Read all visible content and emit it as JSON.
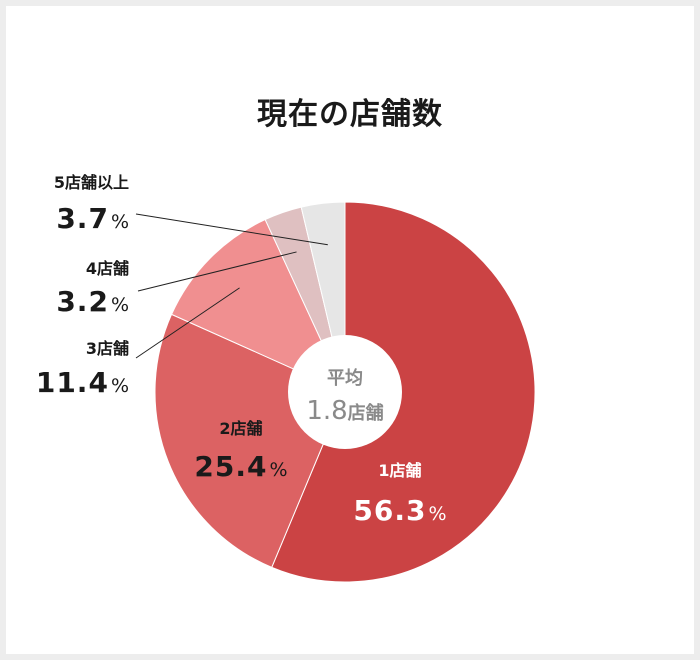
{
  "chart_data": {
    "type": "pie",
    "title": "現在の店舗数",
    "center_caption": "平均",
    "center_value": "1.8",
    "center_unit": "店舗",
    "categories": [
      "1店舗",
      "2店舗",
      "3店舗",
      "4店舗",
      "5店舗以上"
    ],
    "values": [
      56.3,
      25.4,
      11.4,
      3.2,
      3.7
    ],
    "value_labels": [
      "56.3",
      "25.4",
      "11.4",
      "3.2",
      "3.7"
    ],
    "unit": "%",
    "colors": [
      "#cb4344",
      "#dc6263",
      "#f08f90",
      "#dfc0c1",
      "#e6e6e6"
    ],
    "label_colors": [
      "#ffffff",
      "#1a1a1a",
      "#1a1a1a",
      "#1a1a1a",
      "#1a1a1a"
    ]
  }
}
